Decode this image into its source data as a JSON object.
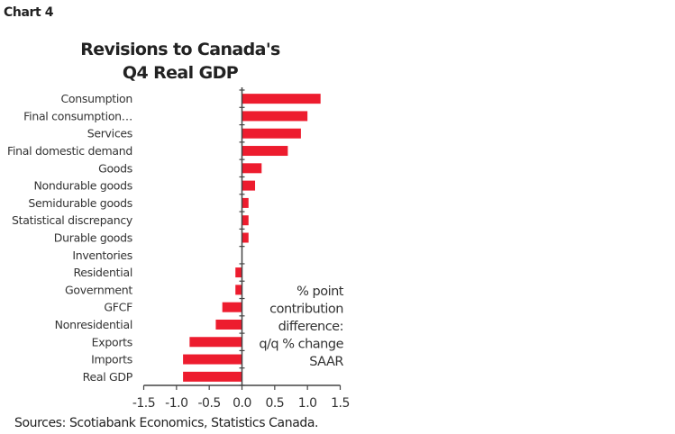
{
  "chart_label": "Chart 4",
  "chart_data": {
    "type": "bar",
    "orientation": "horizontal",
    "title": "Revisions to Canada's Q4 Real GDP",
    "title_lines": [
      "Revisions to Canada's",
      "Q4 Real GDP"
    ],
    "categories": [
      "Consumption",
      "Final consumption…",
      "Services",
      "Final domestic demand",
      "Goods",
      "Nondurable goods",
      "Semidurable goods",
      "Statistical discrepancy",
      "Durable goods",
      "Inventories",
      "Residential",
      "Government",
      "GFCF",
      "Nonresidential",
      "Exports",
      "Imports",
      "Real GDP"
    ],
    "values": [
      1.2,
      1.0,
      0.9,
      0.7,
      0.3,
      0.2,
      0.1,
      0.1,
      0.1,
      0.0,
      -0.1,
      -0.1,
      -0.3,
      -0.4,
      -0.8,
      -0.9,
      -0.9
    ],
    "xlim": [
      -1.5,
      1.5
    ],
    "xticks": [
      "-1.5",
      "-1.0",
      "-0.5",
      "0.0",
      "0.5",
      "1.0",
      "1.5"
    ],
    "annotation": [
      "% point",
      "contribution",
      "difference:",
      "q/q % change",
      "SAAR"
    ],
    "bar_color": "#ed1c2e",
    "grid": false,
    "legend": "none"
  },
  "source": "Sources: Scotiabank Economics, Statistics Canada."
}
